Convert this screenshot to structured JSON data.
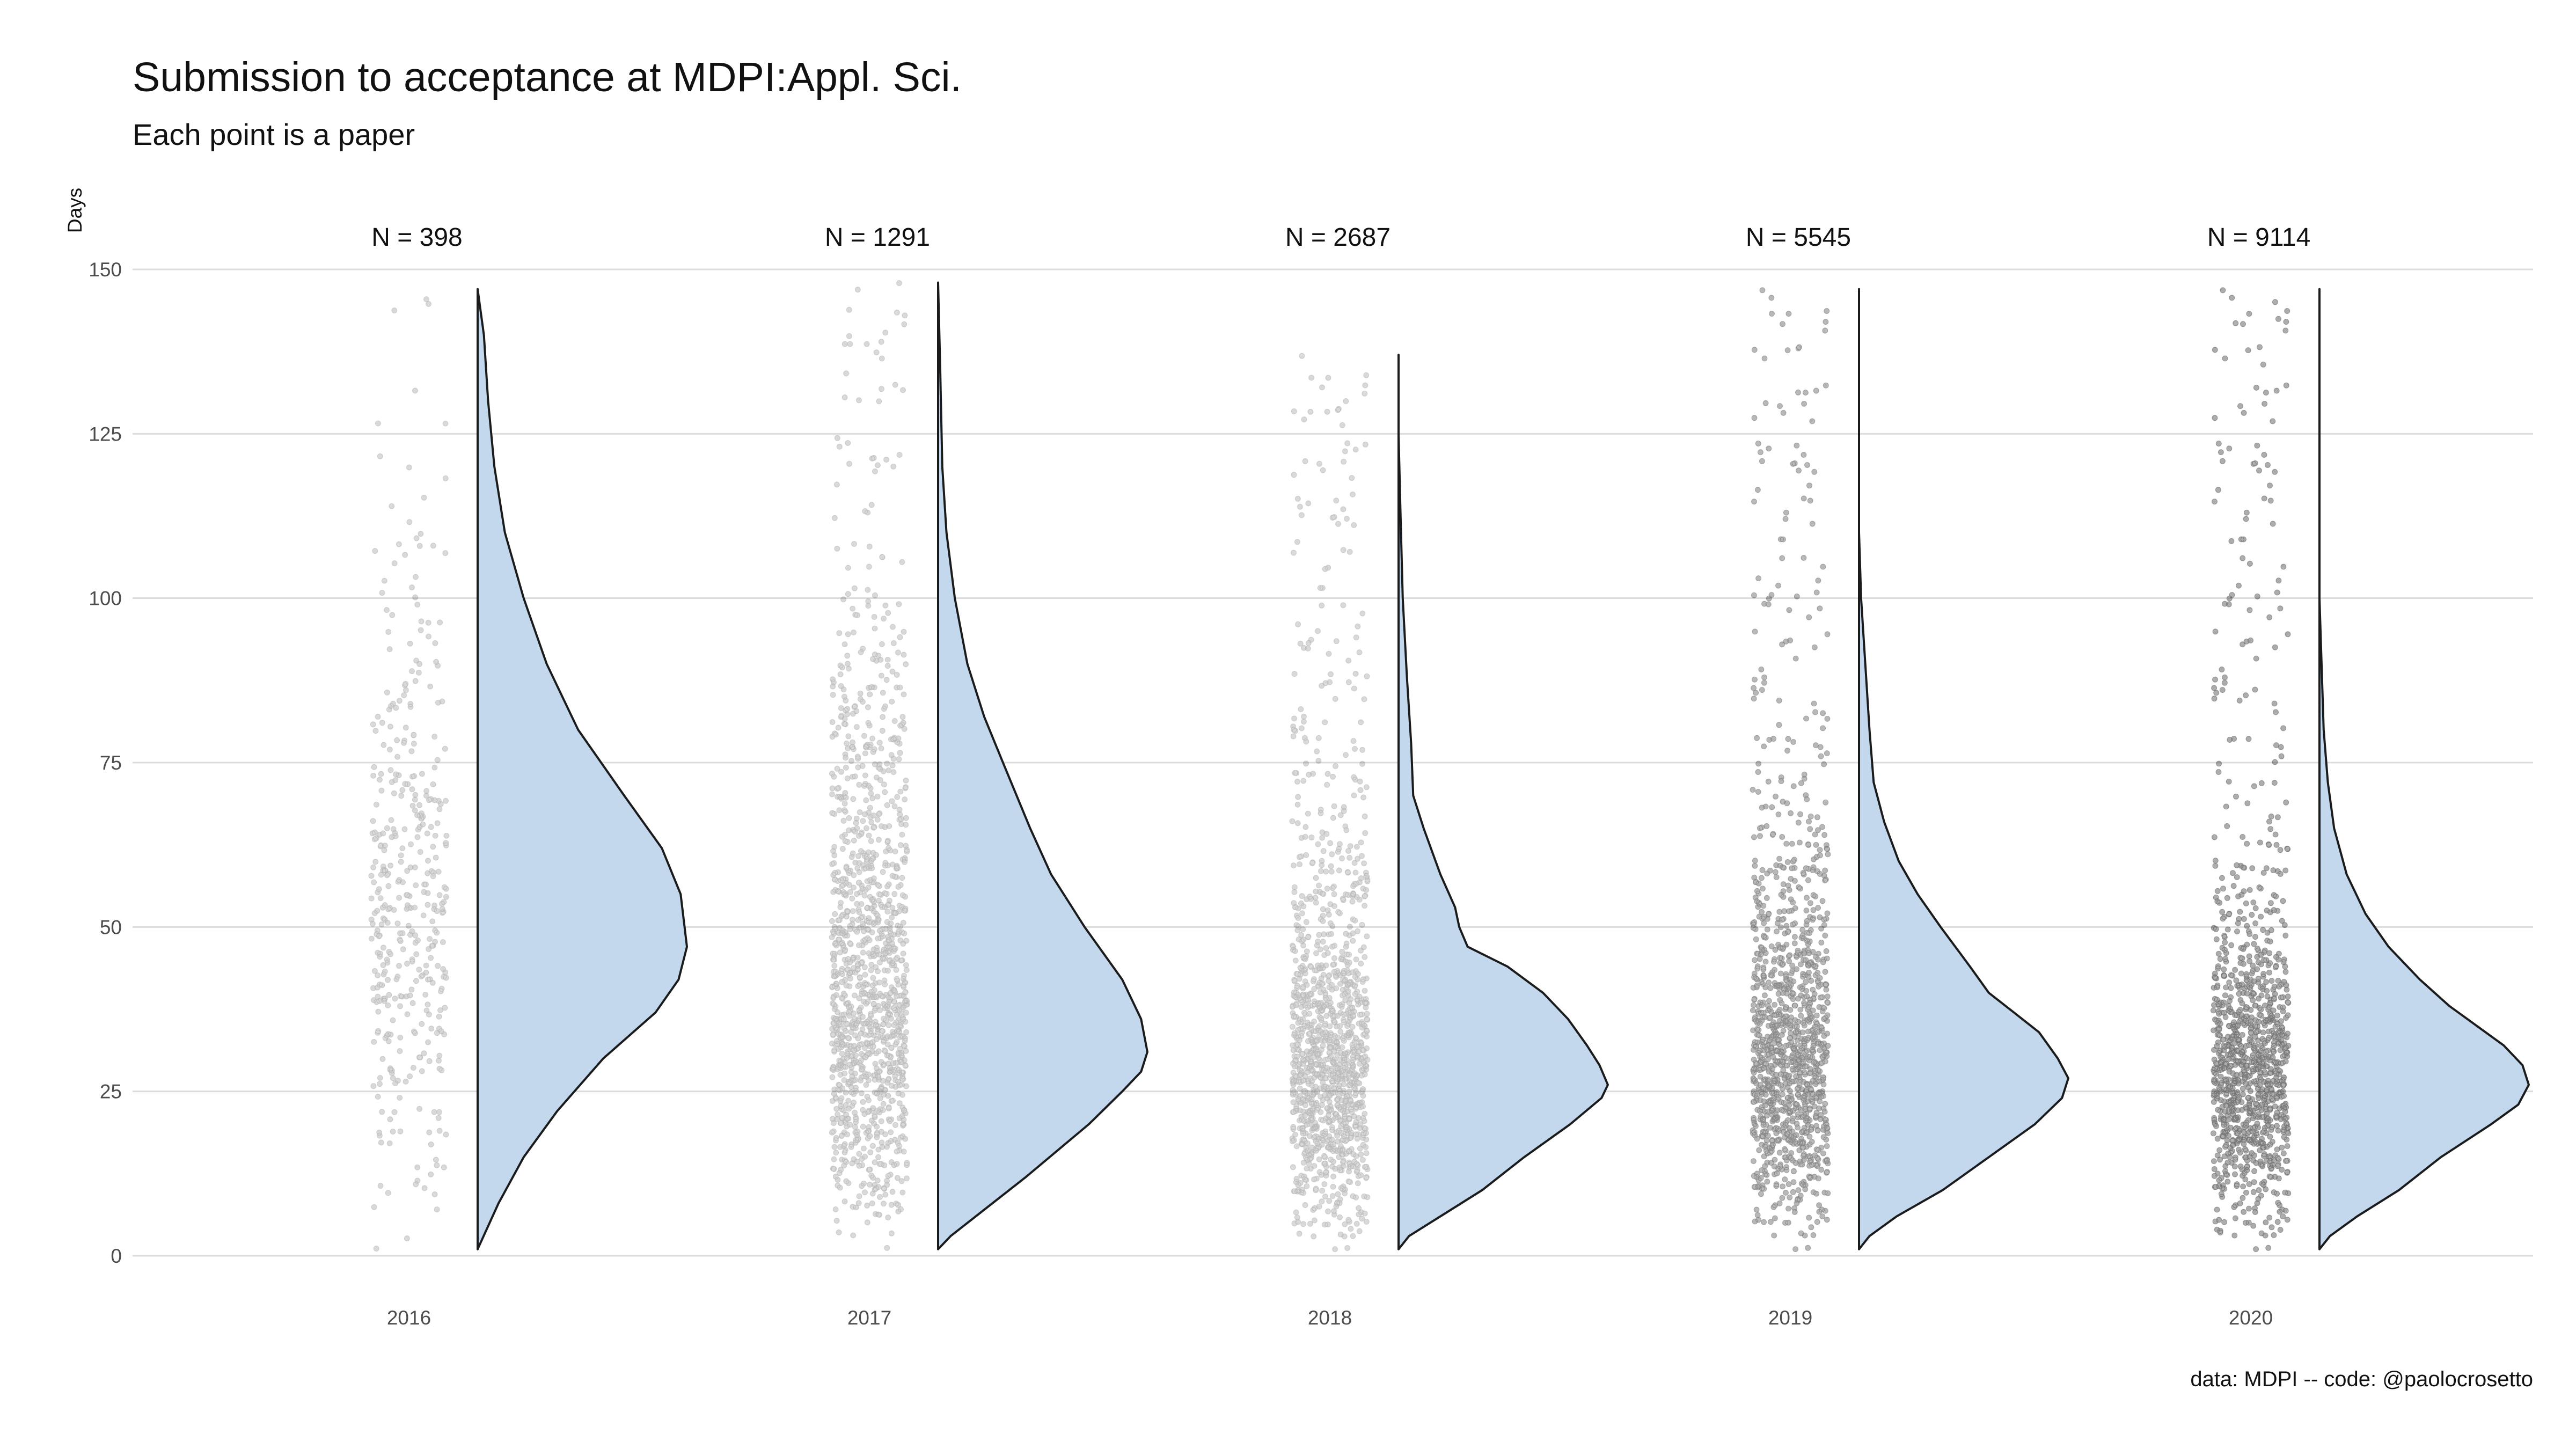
{
  "title": "Submission to acceptance at MDPI:Appl. Sci.",
  "subtitle": "Each point is a paper",
  "caption": "data: MDPI -- code: @paolocrosetto",
  "chart_data": {
    "type": "raincloud",
    "title": "Submission to acceptance at MDPI:Appl. Sci.",
    "subtitle": "Each point is a paper",
    "xlabel": "",
    "ylabel": "Days",
    "ylim": [
      0,
      150
    ],
    "yticks": [
      0,
      25,
      50,
      75,
      100,
      125,
      150
    ],
    "grid": true,
    "fill_color": "#c3d8ec",
    "point_color": "#000000",
    "categories": [
      "2016",
      "2017",
      "2018",
      "2019",
      "2020"
    ],
    "groups": [
      {
        "year": "2016",
        "n": 398,
        "n_label": "N = 398",
        "max": 147,
        "mode": 44,
        "density": [
          [
            1,
            0.0
          ],
          [
            8,
            0.1
          ],
          [
            15,
            0.22
          ],
          [
            22,
            0.38
          ],
          [
            30,
            0.6
          ],
          [
            37,
            0.85
          ],
          [
            42,
            0.96
          ],
          [
            47,
            1.0
          ],
          [
            55,
            0.97
          ],
          [
            62,
            0.88
          ],
          [
            70,
            0.7
          ],
          [
            80,
            0.48
          ],
          [
            90,
            0.33
          ],
          [
            100,
            0.22
          ],
          [
            110,
            0.13
          ],
          [
            120,
            0.08
          ],
          [
            130,
            0.05
          ],
          [
            140,
            0.03
          ],
          [
            147,
            0.0
          ]
        ]
      },
      {
        "year": "2017",
        "n": 1291,
        "n_label": "N = 1291",
        "max": 148,
        "mode": 31,
        "density": [
          [
            1,
            0.0
          ],
          [
            3,
            0.06
          ],
          [
            6,
            0.18
          ],
          [
            12,
            0.42
          ],
          [
            20,
            0.72
          ],
          [
            25,
            0.88
          ],
          [
            28,
            0.97
          ],
          [
            31,
            1.0
          ],
          [
            36,
            0.97
          ],
          [
            42,
            0.88
          ],
          [
            50,
            0.7
          ],
          [
            58,
            0.54
          ],
          [
            65,
            0.44
          ],
          [
            75,
            0.31
          ],
          [
            82,
            0.22
          ],
          [
            90,
            0.14
          ],
          [
            100,
            0.08
          ],
          [
            110,
            0.04
          ],
          [
            120,
            0.02
          ],
          [
            135,
            0.01
          ],
          [
            148,
            0.0
          ]
        ]
      },
      {
        "year": "2018",
        "n": 2687,
        "n_label": "N = 2687",
        "max": 137,
        "mode": 26,
        "density": [
          [
            1,
            0.0
          ],
          [
            3,
            0.05
          ],
          [
            6,
            0.2
          ],
          [
            10,
            0.4
          ],
          [
            15,
            0.6
          ],
          [
            20,
            0.82
          ],
          [
            24,
            0.97
          ],
          [
            26,
            1.0
          ],
          [
            29,
            0.96
          ],
          [
            32,
            0.9
          ],
          [
            36,
            0.81
          ],
          [
            40,
            0.69
          ],
          [
            44,
            0.52
          ],
          [
            47,
            0.33
          ],
          [
            50,
            0.29
          ],
          [
            53,
            0.27
          ],
          [
            58,
            0.2
          ],
          [
            65,
            0.12
          ],
          [
            70,
            0.07
          ],
          [
            78,
            0.06
          ],
          [
            88,
            0.04
          ],
          [
            100,
            0.02
          ],
          [
            112,
            0.01
          ],
          [
            125,
            0.0
          ],
          [
            137,
            0.0
          ]
        ]
      },
      {
        "year": "2019",
        "n": 5545,
        "n_label": "N = 5545",
        "max": 147,
        "mode": 26,
        "density": [
          [
            1,
            0.0
          ],
          [
            3,
            0.05
          ],
          [
            6,
            0.18
          ],
          [
            10,
            0.4
          ],
          [
            15,
            0.62
          ],
          [
            20,
            0.84
          ],
          [
            24,
            0.97
          ],
          [
            27,
            1.0
          ],
          [
            30,
            0.95
          ],
          [
            34,
            0.86
          ],
          [
            37,
            0.74
          ],
          [
            40,
            0.62
          ],
          [
            44,
            0.53
          ],
          [
            50,
            0.39
          ],
          [
            55,
            0.28
          ],
          [
            60,
            0.19
          ],
          [
            66,
            0.12
          ],
          [
            72,
            0.07
          ],
          [
            80,
            0.05
          ],
          [
            90,
            0.03
          ],
          [
            100,
            0.01
          ],
          [
            110,
            0.0
          ],
          [
            147,
            0.0
          ]
        ]
      },
      {
        "year": "2020",
        "n": 9114,
        "n_label": "N = 9114",
        "max": 147,
        "mode": 26,
        "density": [
          [
            1,
            0.0
          ],
          [
            3,
            0.05
          ],
          [
            6,
            0.18
          ],
          [
            10,
            0.38
          ],
          [
            15,
            0.58
          ],
          [
            20,
            0.82
          ],
          [
            23,
            0.95
          ],
          [
            26,
            1.0
          ],
          [
            29,
            0.97
          ],
          [
            32,
            0.88
          ],
          [
            35,
            0.75
          ],
          [
            38,
            0.62
          ],
          [
            42,
            0.48
          ],
          [
            47,
            0.33
          ],
          [
            52,
            0.22
          ],
          [
            58,
            0.13
          ],
          [
            65,
            0.07
          ],
          [
            72,
            0.04
          ],
          [
            80,
            0.02
          ],
          [
            90,
            0.01
          ],
          [
            100,
            0.0
          ],
          [
            147,
            0.0
          ]
        ]
      }
    ]
  }
}
